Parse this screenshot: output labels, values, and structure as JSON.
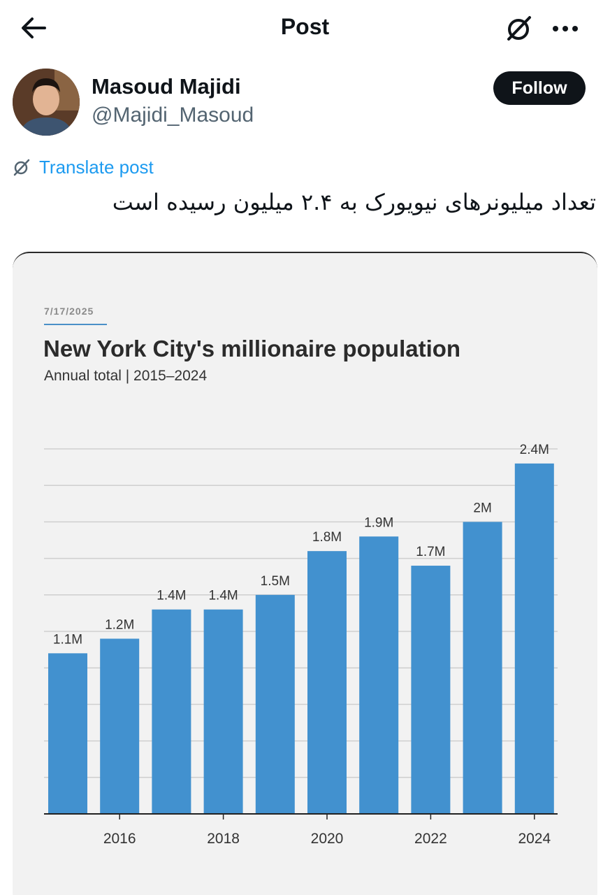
{
  "header": {
    "title": "Post",
    "back_icon": "arrow-left-icon",
    "grok_icon": "grok-icon",
    "more_icon": "more-horizontal-icon"
  },
  "author": {
    "name": "Masoud Majidi",
    "handle": "@Majidi_Masoud",
    "follow_label": "Follow"
  },
  "translate": {
    "label": "Translate post",
    "icon": "translate-icon"
  },
  "post": {
    "text": "تعداد میلیونرهای نیویورک به ۲.۴ میلیون رسیده است"
  },
  "colors": {
    "bar": "#4291cf",
    "accent": "#1d9bf0",
    "follow_bg": "#0f1419"
  },
  "chart_data": {
    "type": "bar",
    "date": "7/17/2025",
    "title": "New York City's millionaire population",
    "subtitle": "Annual total | 2015–2024",
    "categories": [
      "2015",
      "2016",
      "2017",
      "2018",
      "2019",
      "2020",
      "2021",
      "2022",
      "2023",
      "2024"
    ],
    "values": [
      1.1,
      1.2,
      1.4,
      1.4,
      1.5,
      1.8,
      1.9,
      1.7,
      2.0,
      2.4
    ],
    "value_labels": [
      "1.1M",
      "1.2M",
      "1.4M",
      "1.4M",
      "1.5M",
      "1.8M",
      "1.9M",
      "1.7M",
      "2M",
      "2.4M"
    ],
    "x_tick_labels": [
      "2016",
      "2018",
      "2020",
      "2022",
      "2024"
    ],
    "ylim": [
      0,
      2.5
    ],
    "grid": true
  }
}
